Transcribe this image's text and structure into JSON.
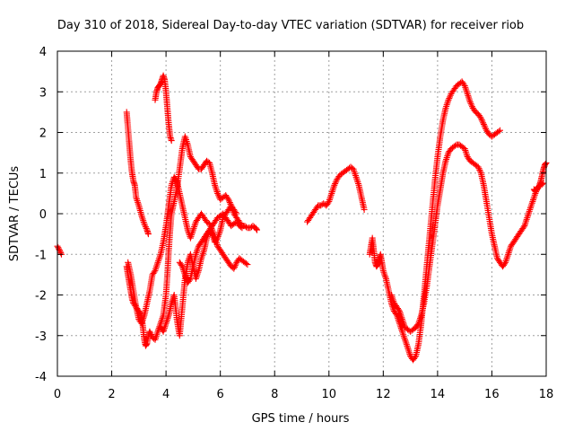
{
  "chart_data": {
    "type": "scatter",
    "title": "Day 310 of 2018, Sidereal Day-to-day VTEC variation (SDTVAR) for receiver riob",
    "xlabel": "GPS time / hours",
    "ylabel": "SDTVAR / TECUs",
    "xlim": [
      0,
      18
    ],
    "ylim": [
      -4,
      4
    ],
    "xticks": [
      0,
      2,
      4,
      6,
      8,
      10,
      12,
      14,
      16,
      18
    ],
    "yticks": [
      -4,
      -3,
      -2,
      -1,
      0,
      1,
      2,
      3,
      4
    ],
    "grid": true,
    "legend": "none",
    "marker": "+",
    "color": "#ff0000",
    "series": [
      {
        "name": "s1",
        "x": [
          0.0,
          0.08,
          0.15
        ],
        "y": [
          -0.8,
          -0.9,
          -1.0
        ]
      },
      {
        "name": "s2",
        "x": [
          2.55,
          2.6,
          2.65,
          2.7,
          2.75,
          2.8,
          2.85,
          2.9,
          3.0,
          3.1,
          3.2,
          3.3,
          3.35
        ],
        "y": [
          2.5,
          2.1,
          1.7,
          1.3,
          1.0,
          0.8,
          0.7,
          0.4,
          0.2,
          -0.05,
          -0.25,
          -0.4,
          -0.5
        ]
      },
      {
        "name": "s3",
        "x": [
          2.55,
          2.6,
          2.65,
          2.7,
          2.75,
          2.8,
          2.9,
          3.0,
          3.1,
          3.15,
          3.2,
          3.25,
          3.3,
          3.35,
          3.4,
          3.5,
          3.6,
          3.7,
          3.8,
          3.9,
          4.0,
          4.05,
          4.1,
          4.15,
          4.2,
          4.3,
          4.4,
          4.5,
          4.6,
          4.7,
          4.8,
          4.9,
          5.0,
          5.1,
          5.2,
          5.3,
          5.4,
          5.5,
          5.6,
          5.7,
          5.8,
          5.9,
          6.0,
          6.1,
          6.2,
          6.3,
          6.4,
          6.5,
          6.6,
          6.7,
          6.8,
          6.9,
          7.0,
          7.1,
          7.2,
          7.3,
          7.35
        ],
        "y": [
          -1.3,
          -1.5,
          -1.7,
          -1.9,
          -2.1,
          -2.2,
          -2.3,
          -2.4,
          -2.5,
          -2.8,
          -3.1,
          -3.25,
          -3.2,
          -3.0,
          -2.9,
          -3.05,
          -3.1,
          -2.9,
          -2.7,
          -2.5,
          -2.0,
          -1.5,
          -0.9,
          -0.4,
          0.0,
          0.3,
          0.6,
          1.1,
          1.6,
          1.9,
          1.7,
          1.4,
          1.3,
          1.2,
          1.1,
          1.1,
          1.2,
          1.3,
          1.25,
          1.0,
          0.7,
          0.5,
          0.35,
          0.4,
          0.45,
          0.35,
          0.2,
          0.0,
          -0.1,
          -0.2,
          -0.3,
          -0.3,
          -0.35,
          -0.35,
          -0.3,
          -0.35,
          -0.4
        ]
      },
      {
        "name": "s4",
        "x": [
          3.6,
          3.65,
          3.7,
          3.75,
          3.8,
          3.85,
          3.9,
          3.95,
          4.0,
          4.05,
          4.1,
          4.15,
          4.2
        ],
        "y": [
          2.8,
          3.0,
          3.1,
          3.15,
          3.2,
          3.3,
          3.4,
          3.3,
          3.0,
          2.6,
          2.2,
          1.9,
          1.8
        ]
      },
      {
        "name": "s5",
        "x": [
          2.6,
          2.7,
          2.8,
          2.9,
          3.0,
          3.1,
          3.2,
          3.3,
          3.4,
          3.5,
          3.6,
          3.7,
          3.8,
          3.9,
          4.0,
          4.1,
          4.2,
          4.3,
          4.4,
          4.5,
          4.6,
          4.7,
          4.8,
          4.9,
          5.0,
          5.1,
          5.2,
          5.3,
          5.4,
          5.5,
          5.6,
          5.7,
          5.8,
          5.9,
          6.0,
          6.1,
          6.2,
          6.3,
          6.4,
          6.5,
          6.6,
          6.7,
          6.8,
          6.9,
          7.0
        ],
        "y": [
          -1.2,
          -1.5,
          -1.9,
          -2.3,
          -2.6,
          -2.7,
          -2.5,
          -2.2,
          -1.9,
          -1.5,
          -1.4,
          -1.2,
          -1.0,
          -0.7,
          -0.3,
          0.2,
          0.7,
          0.9,
          0.8,
          0.5,
          0.2,
          -0.1,
          -0.4,
          -0.6,
          -0.4,
          -0.2,
          -0.1,
          0.0,
          -0.1,
          -0.2,
          -0.25,
          -0.4,
          -0.6,
          -0.8,
          -0.9,
          -1.0,
          -1.1,
          -1.2,
          -1.3,
          -1.35,
          -1.2,
          -1.1,
          -1.15,
          -1.2,
          -1.25
        ]
      },
      {
        "name": "s6",
        "x": [
          3.8,
          3.9,
          4.0,
          4.1,
          4.2,
          4.3,
          4.4,
          4.5,
          4.6,
          4.7,
          4.8,
          4.9,
          5.0,
          5.1,
          5.2,
          5.3,
          5.4,
          5.5,
          5.6,
          5.7,
          5.8,
          5.9,
          6.0,
          6.1,
          6.2,
          6.3,
          6.4,
          6.5,
          6.6
        ],
        "y": [
          -2.8,
          -2.9,
          -2.7,
          -2.5,
          -2.2,
          -2.0,
          -2.6,
          -3.0,
          -2.3,
          -1.6,
          -1.2,
          -1.0,
          -1.3,
          -1.6,
          -1.4,
          -1.1,
          -0.9,
          -0.6,
          -0.4,
          -0.5,
          -0.7,
          -0.6,
          -0.4,
          -0.1,
          0.0,
          0.1,
          0.2,
          0.1,
          0.0
        ]
      },
      {
        "name": "s7",
        "x": [
          4.5,
          4.6,
          4.7,
          4.8,
          4.9,
          5.0,
          5.1,
          5.2,
          5.3,
          5.4,
          5.5,
          5.6,
          5.7,
          5.8,
          5.9,
          6.0,
          6.1,
          6.2,
          6.3,
          6.4,
          6.5,
          6.6,
          6.7,
          6.8
        ],
        "y": [
          -1.2,
          -1.3,
          -1.5,
          -1.7,
          -1.6,
          -1.3,
          -1.0,
          -0.8,
          -0.7,
          -0.6,
          -0.5,
          -0.4,
          -0.3,
          -0.2,
          -0.1,
          -0.05,
          0.0,
          -0.1,
          -0.2,
          -0.3,
          -0.25,
          -0.2,
          -0.3,
          -0.35
        ]
      },
      {
        "name": "s8",
        "x": [
          9.2,
          9.3,
          9.4,
          9.5,
          9.6,
          9.7,
          9.8,
          9.9,
          10.0,
          10.1,
          10.2,
          10.3,
          10.4,
          10.5,
          10.6,
          10.7,
          10.8,
          10.9,
          11.0,
          11.1,
          11.2,
          11.3
        ],
        "y": [
          -0.2,
          -0.1,
          0.0,
          0.1,
          0.2,
          0.2,
          0.25,
          0.2,
          0.3,
          0.5,
          0.7,
          0.85,
          0.95,
          1.0,
          1.05,
          1.1,
          1.15,
          1.1,
          0.9,
          0.7,
          0.4,
          0.1
        ]
      },
      {
        "name": "s9",
        "x": [
          11.5,
          11.55,
          11.6,
          11.65,
          11.7,
          11.75,
          11.8,
          11.85,
          11.9,
          11.95,
          12.0,
          12.1,
          12.2,
          12.3,
          12.4,
          12.5,
          12.6,
          12.7,
          12.8,
          12.9,
          13.0,
          13.1,
          13.2,
          13.3,
          13.4,
          13.5,
          13.6,
          13.7,
          13.8,
          13.9,
          14.0,
          14.1,
          14.2,
          14.3,
          14.4,
          14.5,
          14.6,
          14.7,
          14.8,
          14.9,
          15.0,
          15.1,
          15.2,
          15.3,
          15.4,
          15.5,
          15.6,
          15.7,
          15.8,
          15.9,
          16.0,
          16.1,
          16.2,
          16.3
        ],
        "y": [
          -1.0,
          -0.8,
          -0.6,
          -0.9,
          -1.2,
          -1.3,
          -1.25,
          -1.1,
          -1.0,
          -1.2,
          -1.4,
          -1.6,
          -1.9,
          -2.2,
          -2.4,
          -2.5,
          -2.7,
          -2.9,
          -3.1,
          -3.3,
          -3.5,
          -3.6,
          -3.5,
          -3.2,
          -2.7,
          -2.0,
          -1.3,
          -0.6,
          0.1,
          0.8,
          1.4,
          1.9,
          2.3,
          2.6,
          2.8,
          2.95,
          3.05,
          3.15,
          3.2,
          3.25,
          3.15,
          2.95,
          2.75,
          2.6,
          2.5,
          2.45,
          2.35,
          2.2,
          2.05,
          1.95,
          1.9,
          1.95,
          2.0,
          2.05
        ]
      },
      {
        "name": "s10",
        "x": [
          12.3,
          12.4,
          12.5,
          12.6,
          12.7,
          12.8,
          12.9,
          13.0,
          13.1,
          13.2,
          13.3,
          13.4,
          13.5,
          13.6,
          13.7,
          13.8,
          13.9,
          14.0,
          14.1,
          14.2,
          14.3,
          14.4,
          14.5,
          14.6,
          14.7,
          14.8,
          14.9,
          15.0,
          15.1,
          15.2,
          15.3,
          15.4,
          15.5,
          15.6,
          15.7,
          15.8,
          15.9,
          16.0,
          16.1,
          16.2,
          16.3,
          16.4,
          16.5,
          16.6,
          16.7,
          16.8,
          16.9,
          17.0,
          17.1,
          17.2,
          17.3,
          17.4,
          17.5,
          17.6,
          17.7,
          17.8,
          17.9
        ],
        "y": [
          -2.0,
          -2.2,
          -2.3,
          -2.4,
          -2.6,
          -2.8,
          -2.85,
          -2.9,
          -2.85,
          -2.8,
          -2.7,
          -2.5,
          -2.2,
          -1.8,
          -1.3,
          -0.8,
          -0.3,
          0.2,
          0.6,
          1.0,
          1.3,
          1.5,
          1.6,
          1.65,
          1.7,
          1.7,
          1.65,
          1.6,
          1.4,
          1.3,
          1.25,
          1.2,
          1.15,
          1.0,
          0.7,
          0.3,
          -0.1,
          -0.5,
          -0.8,
          -1.1,
          -1.2,
          -1.3,
          -1.2,
          -1.0,
          -0.8,
          -0.7,
          -0.6,
          -0.5,
          -0.4,
          -0.3,
          -0.1,
          0.1,
          0.3,
          0.5,
          0.65,
          0.7,
          0.75
        ]
      },
      {
        "name": "s11",
        "x": [
          17.55,
          17.6,
          17.65,
          17.7,
          17.75,
          17.8,
          17.85,
          17.9,
          17.95,
          18.0
        ],
        "y": [
          0.6,
          0.55,
          0.6,
          0.65,
          0.7,
          0.8,
          0.95,
          1.1,
          1.2,
          1.25
        ]
      }
    ]
  }
}
